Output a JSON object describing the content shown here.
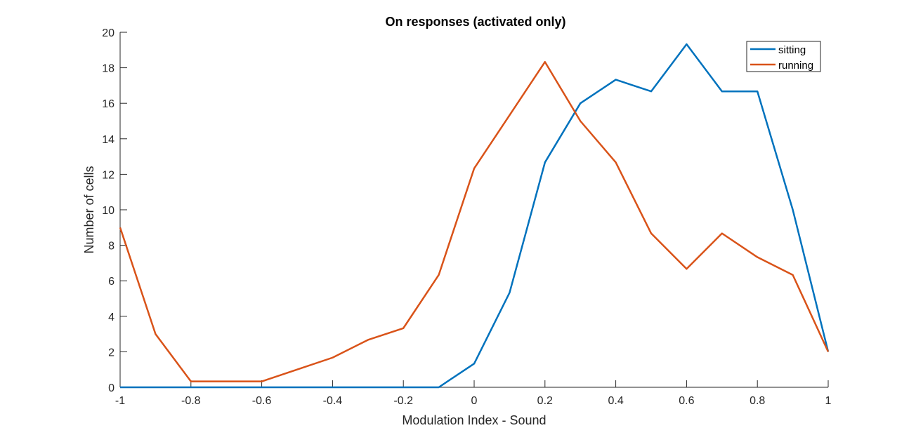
{
  "chart_data": {
    "type": "line",
    "title": "On responses (activated only)",
    "xlabel": "Modulation Index - Sound",
    "ylabel": "Number of cells",
    "xlim": [
      -1,
      1
    ],
    "ylim": [
      0,
      20
    ],
    "xticks": [
      -1,
      -0.8,
      -0.6,
      -0.4,
      -0.2,
      0,
      0.2,
      0.4,
      0.6,
      0.8,
      1
    ],
    "yticks": [
      0,
      2,
      4,
      6,
      8,
      10,
      12,
      14,
      16,
      18,
      20
    ],
    "xtick_labels": [
      "-1",
      "-0.8",
      "-0.6",
      "-0.4",
      "-0.2",
      "0",
      "0.2",
      "0.4",
      "0.6",
      "0.8",
      "1"
    ],
    "ytick_labels": [
      "0",
      "2",
      "4",
      "6",
      "8",
      "10",
      "12",
      "14",
      "16",
      "18",
      "20"
    ],
    "grid": false,
    "legend_position": "top-right",
    "x": [
      -1,
      -0.9,
      -0.8,
      -0.7,
      -0.6,
      -0.5,
      -0.4,
      -0.3,
      -0.2,
      -0.1,
      0,
      0.1,
      0.2,
      0.3,
      0.4,
      0.5,
      0.6,
      0.7,
      0.8,
      0.9,
      1
    ],
    "series": [
      {
        "name": "sitting",
        "color": "#0072BD",
        "values": [
          0,
          0,
          0,
          0,
          0,
          0,
          0,
          0,
          0,
          0,
          1.33,
          5.33,
          12.67,
          16,
          17.33,
          16.67,
          19.33,
          16.67,
          16.67,
          10,
          2
        ]
      },
      {
        "name": "running",
        "color": "#D95319",
        "values": [
          9,
          3,
          0.33,
          0.33,
          0.33,
          1,
          1.67,
          2.67,
          3.33,
          6.33,
          12.33,
          15.33,
          18.33,
          15,
          12.67,
          8.67,
          6.67,
          8.67,
          7.33,
          6.33,
          2
        ]
      }
    ]
  }
}
